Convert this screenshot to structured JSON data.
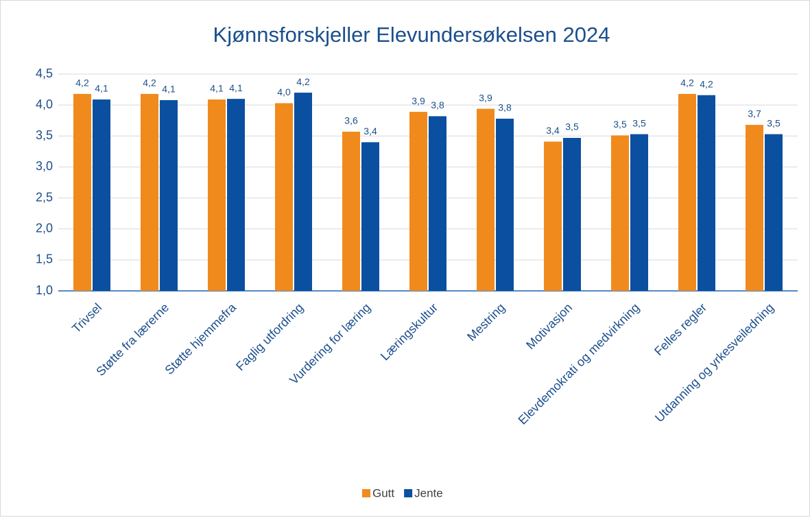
{
  "chart_data": {
    "type": "bar",
    "title": "Kjønnsforskjeller Elevundersøkelsen 2024",
    "categories": [
      "Trivsel",
      "Støtte fra lærerne",
      "Støtte hjemmefra",
      "Faglig utfordring",
      "Vurdering for læring",
      "Læringskultur",
      "Mestring",
      "Motivasjon",
      "Elevdemokrati og medvirkning",
      "Felles regler",
      "Utdanning og yrkesveiledning"
    ],
    "series": [
      {
        "name": "Gutt",
        "color": "#f08a1d",
        "values": [
          4.18,
          4.18,
          4.09,
          4.03,
          3.57,
          3.89,
          3.94,
          3.41,
          3.51,
          4.18,
          3.68
        ],
        "value_labels": [
          "4,2",
          "4,2",
          "4,1",
          "4,0",
          "3,6",
          "3,9",
          "3,9",
          "3,4",
          "3,5",
          "4,2",
          "3,7"
        ]
      },
      {
        "name": "Jente",
        "color": "#0b50a0",
        "values": [
          4.09,
          4.08,
          4.1,
          4.2,
          3.4,
          3.82,
          3.78,
          3.47,
          3.53,
          4.16,
          3.53
        ],
        "value_labels": [
          "4,1",
          "4,1",
          "4,1",
          "4,2",
          "3,4",
          "3,8",
          "3,8",
          "3,5",
          "3,5",
          "4,2",
          "3,5"
        ]
      }
    ],
    "ylim": [
      1,
      4.5
    ],
    "yticks": [
      {
        "value": 1,
        "label": "1,0"
      },
      {
        "value": 1.5,
        "label": "1,5"
      },
      {
        "value": 2,
        "label": "2,0"
      },
      {
        "value": 2.5,
        "label": "2,5"
      },
      {
        "value": 3,
        "label": "3,0"
      },
      {
        "value": 3.5,
        "label": "3,5"
      },
      {
        "value": 4,
        "label": "4,0"
      },
      {
        "value": 4.5,
        "label": "4,5"
      }
    ],
    "grid": true,
    "legend": "bottom"
  }
}
